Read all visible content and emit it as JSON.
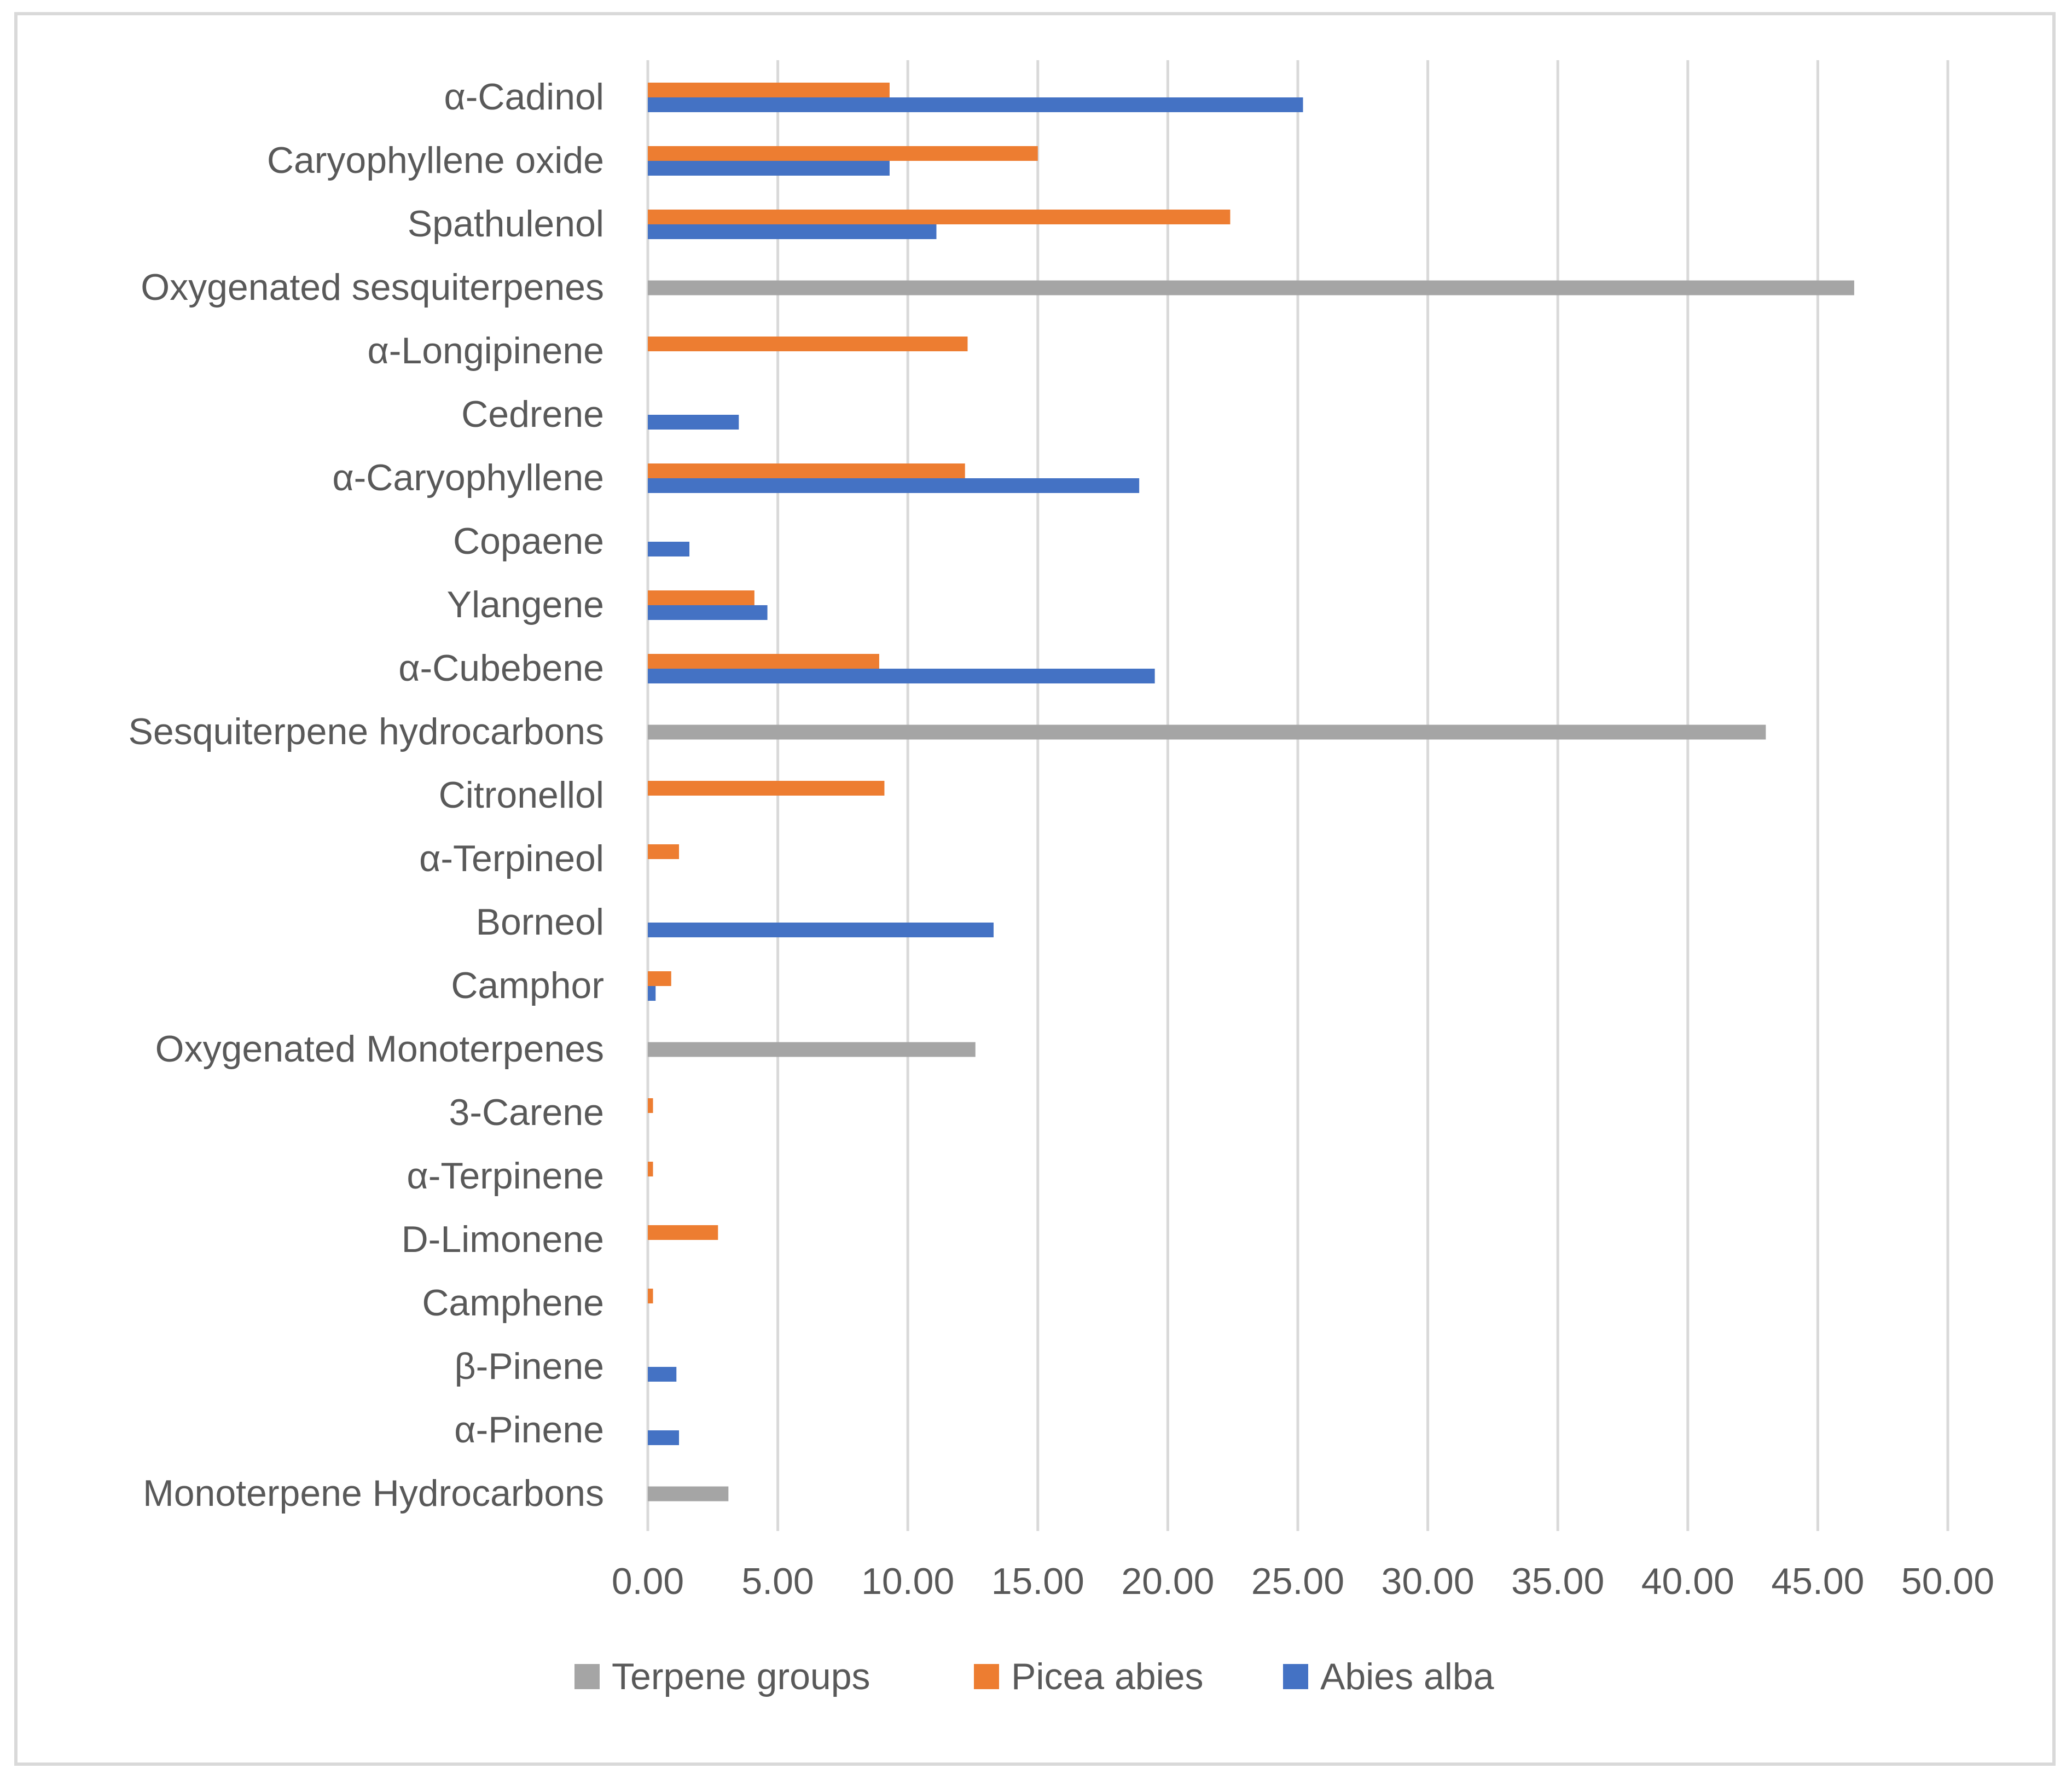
{
  "chart_data": {
    "type": "bar",
    "orientation": "horizontal",
    "title": "",
    "xlabel": "",
    "ylabel": "",
    "xlim": [
      0,
      50
    ],
    "x_ticks": [
      "0.00",
      "5.00",
      "10.00",
      "15.00",
      "20.00",
      "25.00",
      "30.00",
      "35.00",
      "40.00",
      "45.00",
      "50.00"
    ],
    "grid": "vertical",
    "legend_position": "bottom",
    "categories": [
      "α-Cadinol",
      "Caryophyllene oxide",
      "Spathulenol",
      "Oxygenated sesquiterpenes",
      "α-Longipinene",
      "Cedrene",
      "α-Caryophyllene",
      "Copaene",
      "Ylangene",
      "α-Cubebene",
      "Sesquiterpene hydrocarbons",
      "Citronellol",
      "α-Terpineol",
      "Borneol",
      "Camphor",
      "Oxygenated Monoterpenes",
      "3-Carene",
      "α-Terpinene",
      "D-Limonene",
      "Camphene",
      "β-Pinene",
      "α-Pinene",
      "Monoterpene Hydrocarbons"
    ],
    "series": [
      {
        "name": "Terpene groups",
        "color": "#a5a5a5",
        "values": [
          null,
          null,
          null,
          46.4,
          null,
          null,
          null,
          null,
          null,
          null,
          43.0,
          null,
          null,
          null,
          null,
          12.6,
          null,
          null,
          null,
          null,
          null,
          null,
          3.1
        ]
      },
      {
        "name": "Picea abies",
        "color": "#ed7d31",
        "values": [
          9.3,
          15.0,
          22.4,
          null,
          12.3,
          null,
          12.2,
          null,
          4.1,
          8.9,
          null,
          9.1,
          1.2,
          null,
          0.9,
          null,
          0.2,
          0.2,
          2.7,
          0.2,
          null,
          null,
          null
        ]
      },
      {
        "name": "Abies alba",
        "color": "#4472c4",
        "values": [
          25.2,
          9.3,
          11.1,
          null,
          null,
          3.5,
          18.9,
          1.6,
          4.6,
          19.5,
          null,
          null,
          null,
          13.3,
          0.3,
          null,
          null,
          null,
          null,
          null,
          1.1,
          1.2,
          null
        ]
      }
    ],
    "legend_order": [
      "Terpene groups",
      "Picea abies",
      "Abies alba"
    ]
  }
}
